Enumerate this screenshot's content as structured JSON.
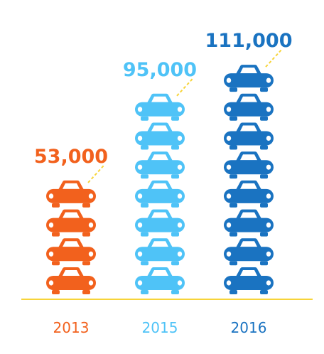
{
  "chart_data": {
    "type": "bar",
    "categories": [
      "2013",
      "2015",
      "2016"
    ],
    "values": [
      53000,
      95000,
      111000
    ],
    "value_labels": [
      "53,000",
      "95,000",
      "111,000"
    ],
    "colors": [
      "#f2611d",
      "#4fc3f7",
      "#1a73c1"
    ],
    "baseline_color": "#f7d43a",
    "title": "",
    "xlabel": "",
    "ylabel": "",
    "grid": false,
    "legend": "none"
  }
}
